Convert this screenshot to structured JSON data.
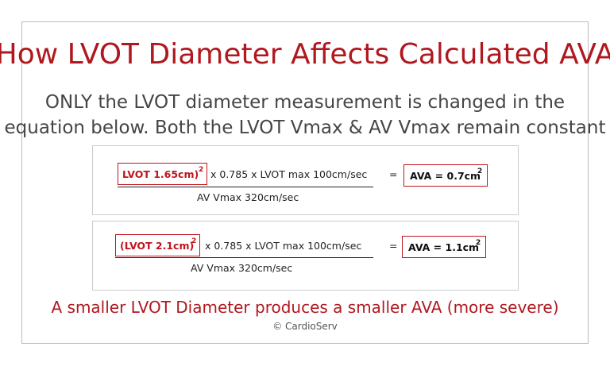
{
  "title": "How LVOT Diameter Affects Calculated AVA",
  "subtitle": [
    "ONLY the LVOT diameter measurement is changed in the",
    "equation below.  Both the LVOT Vmax & AV Vmax remain constant"
  ],
  "equations": [
    {
      "lvot": "LVOT 1.65cm)",
      "exponent": "2",
      "terms": "x  0.785  x  LVOT max 100cm/sec",
      "equals": "=",
      "result": "AVA = 0.7cm",
      "result_exponent": "2",
      "denominator": "AV Vmax 320cm/sec"
    },
    {
      "lvot": "(LVOT 2.1cm)",
      "exponent": "2",
      "terms": "x  0.785  x  LVOT max 100cm/sec",
      "equals": "=",
      "result": "AVA = 1.1cm",
      "result_exponent": "2",
      "denominator": "AV Vmax 320cm/sec"
    }
  ],
  "conclusion": "A smaller LVOT Diameter produces a smaller AVA (more severe)",
  "copyright": "© CardioServ"
}
